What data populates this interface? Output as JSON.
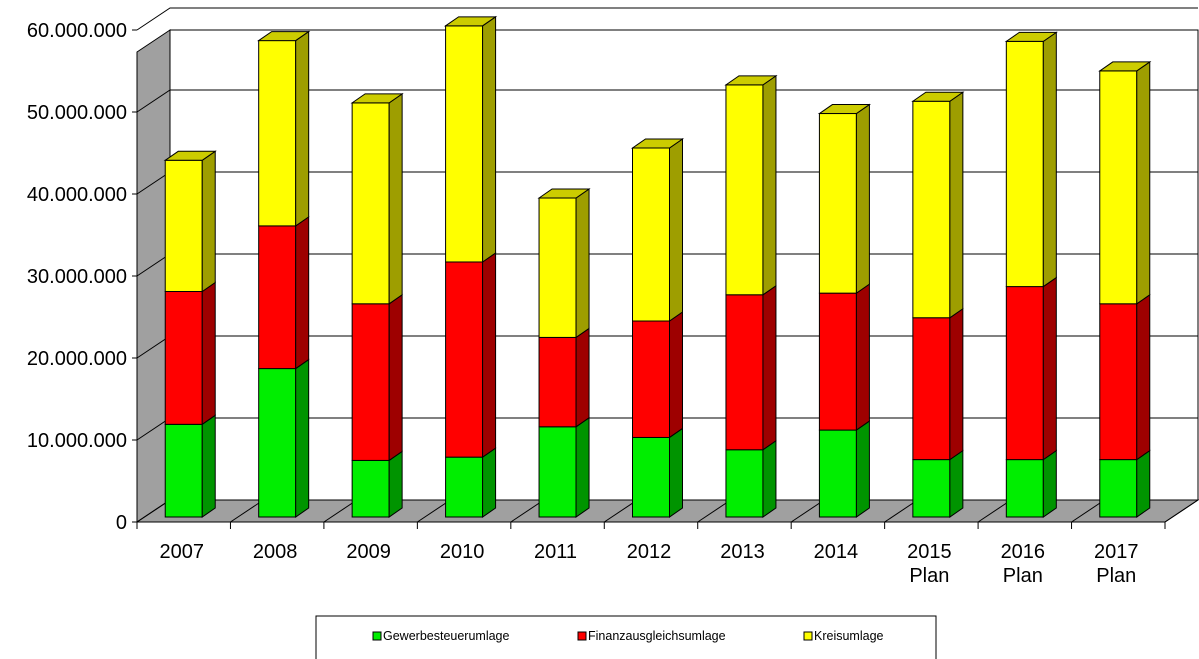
{
  "chart_data": {
    "type": "bar",
    "stacked": true,
    "style": "3d",
    "title": "",
    "xlabel": "",
    "ylabel": "",
    "ylim": [
      0,
      60000000
    ],
    "y_ticks": [
      "0",
      "10.000.000",
      "20.000.000",
      "30.000.000",
      "40.000.000",
      "50.000.000",
      "60.000.000"
    ],
    "grid": true,
    "legend_position": "bottom",
    "categories": [
      [
        "2007"
      ],
      [
        "2008"
      ],
      [
        "2009"
      ],
      [
        "2010"
      ],
      [
        "2011"
      ],
      [
        "2012"
      ],
      [
        "2013"
      ],
      [
        "2014"
      ],
      [
        "2015",
        "Plan"
      ],
      [
        "2016",
        "Plan"
      ],
      [
        "2017",
        "Plan"
      ]
    ],
    "series": [
      {
        "name": "Gewerbesteuerumlage",
        "color": "#00ee00",
        "values": [
          11300000,
          18100000,
          6900000,
          7300000,
          11000000,
          9700000,
          8200000,
          10600000,
          7000000,
          7000000,
          7000000
        ]
      },
      {
        "name": "Finanzausgleichsumlage",
        "color": "#ff0000",
        "values": [
          16200000,
          17400000,
          19100000,
          23800000,
          10900000,
          14200000,
          18900000,
          16700000,
          17300000,
          21100000,
          19000000
        ]
      },
      {
        "name": "Kreisumlage",
        "color": "#ffff00",
        "values": [
          16000000,
          22600000,
          24500000,
          28800000,
          17000000,
          21100000,
          25600000,
          21900000,
          26400000,
          29900000,
          28400000
        ]
      }
    ]
  }
}
